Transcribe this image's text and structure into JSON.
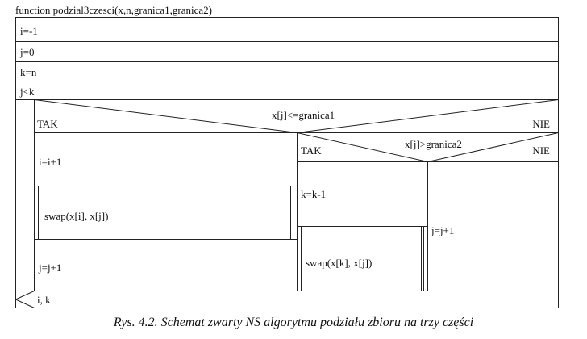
{
  "diagram": {
    "function_header": "function podzial3czesci(x,n,granica1,granica2)",
    "init_steps": [
      "i=-1",
      "j=0",
      "k=n"
    ],
    "loop_condition": "j<k",
    "outer_if": {
      "condition": "x[j]<=granica1",
      "yes_label": "TAK",
      "no_label": "NIE"
    },
    "yes_branch_steps": [
      "i=i+1",
      "swap(x[i], x[j])",
      "j=j+1"
    ],
    "inner_if": {
      "condition": "x[j]>granica2",
      "yes_label": "TAK",
      "no_label": "NIE"
    },
    "inner_yes_steps": [
      "k=k-1",
      "swap(x[k], x[j])"
    ],
    "inner_no_steps": [
      "j=j+1"
    ],
    "return_values": "i, k",
    "caption": "Rys. 4.2. Schemat zwarty NS algorytmu podziału zbioru na trzy części"
  }
}
